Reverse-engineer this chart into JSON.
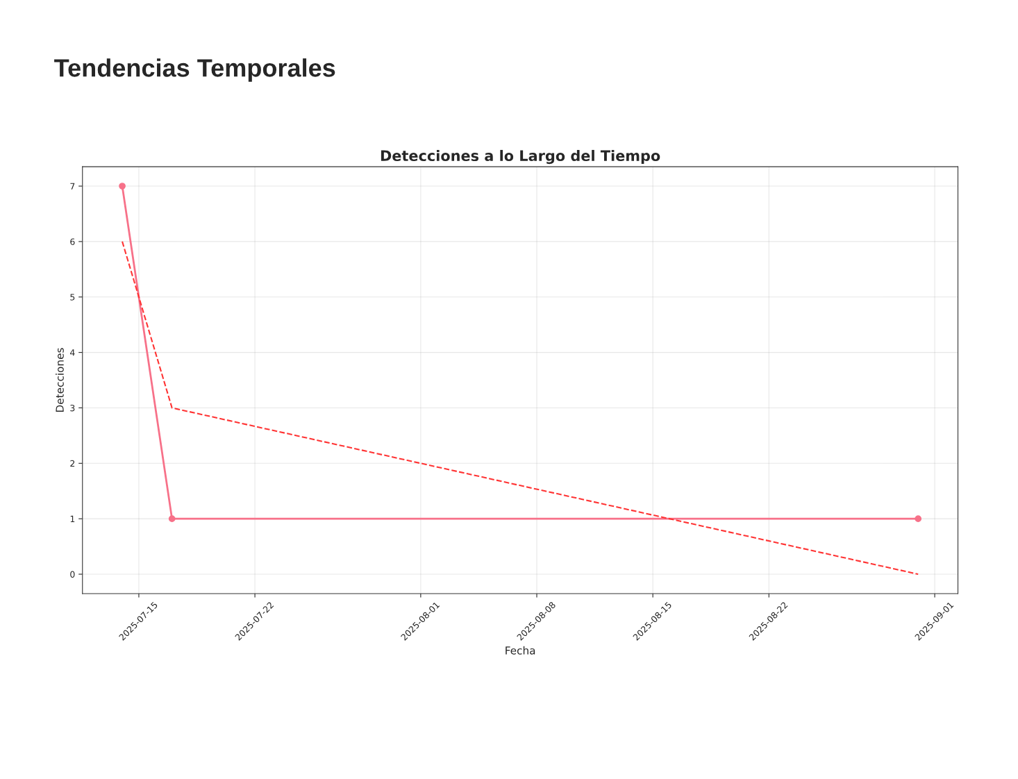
{
  "chart_data": {
    "type": "line",
    "title": "Tendencias Temporales",
    "subtitle": "Detecciones a lo Largo del Tiempo",
    "xlabel": "Fecha",
    "ylabel": "Detecciones",
    "series": [
      {
        "color": "#f77189",
        "x": [
          "2025-07-14",
          "2025-07-17",
          "2025-08-31"
        ],
        "values": [
          7,
          1,
          1
        ],
        "marker": "circle",
        "line_style": "solid"
      },
      {
        "color": "#ff3333",
        "x": [
          "2025-07-14",
          "2025-07-17",
          "2025-08-31"
        ],
        "values": [
          6,
          3,
          0
        ],
        "marker": "none",
        "line_style": "dashed"
      }
    ],
    "xlim": [
      "2025-07-11T14:24",
      "2025-09-02T09:36"
    ],
    "xticks": [
      "2025-07-15",
      "2025-07-22",
      "2025-08-01",
      "2025-08-08",
      "2025-08-15",
      "2025-08-22",
      "2025-09-01"
    ],
    "ylim": [
      -0.35,
      7.35
    ],
    "yticks": [
      0,
      1,
      2,
      3,
      4,
      5,
      6,
      7
    ],
    "grid": true,
    "legend": false
  }
}
